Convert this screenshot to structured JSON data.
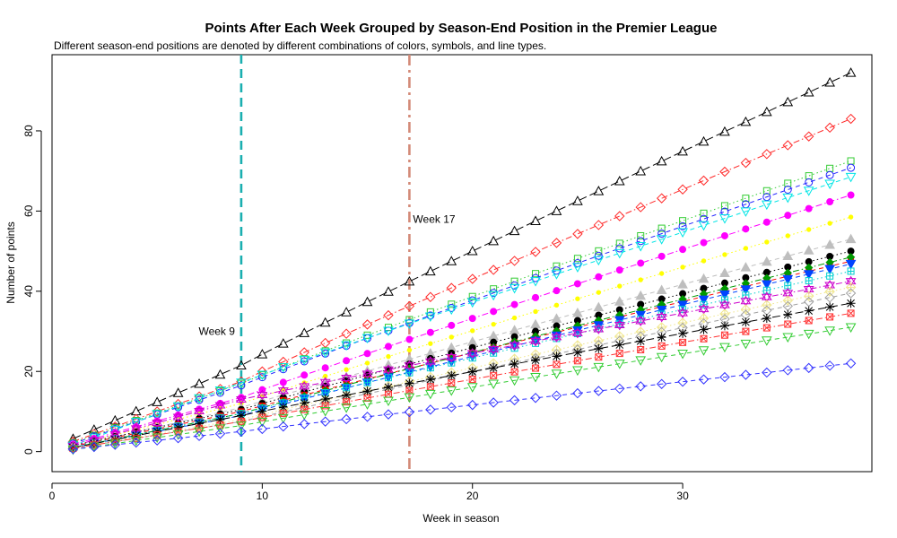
{
  "chart_data": {
    "type": "line",
    "title": "Points After Each Week Grouped by Season-End Position in the Premier League",
    "subtitle": "Different season-end positions are denoted by different combinations of colors, symbols, and line types.",
    "xlabel": "Week in season",
    "ylabel": "Number of points",
    "xlim": [
      0,
      39
    ],
    "ylim": [
      -5,
      99
    ],
    "xticks": [
      0,
      10,
      20,
      30
    ],
    "yticks": [
      0,
      20,
      40,
      60,
      80
    ],
    "grid": false,
    "legend": "none",
    "x": [
      1,
      2,
      3,
      4,
      5,
      6,
      7,
      8,
      9,
      10,
      11,
      12,
      13,
      14,
      15,
      16,
      17,
      18,
      19,
      20,
      21,
      22,
      23,
      24,
      25,
      26,
      27,
      28,
      29,
      30,
      31,
      32,
      33,
      34,
      35,
      36,
      37,
      38
    ],
    "annotations": [
      {
        "label": "Week 9",
        "x": 9,
        "label_y": 30,
        "color": "#1AAFB0",
        "dash": "dashed",
        "label_side": "left"
      },
      {
        "label": "Week 17",
        "x": 17,
        "label_y": 58,
        "color": "#D38A78",
        "dash": "dashdot",
        "label_side": "right"
      }
    ],
    "series": [
      {
        "color": "#000000",
        "marker": "triangle-up",
        "dash": "longdash",
        "start": 3.2,
        "mid": 21.5,
        "end": 94.5
      },
      {
        "color": "#FF2A2A",
        "marker": "diamond",
        "dash": "dashdot",
        "start": 2.5,
        "mid": 17.5,
        "end": 83.0
      },
      {
        "color": "#33CC33",
        "marker": "square",
        "dash": "dotted",
        "start": 2.2,
        "mid": 17.0,
        "end": 72.5
      },
      {
        "color": "#2222FF",
        "marker": "circle",
        "dash": "dashed",
        "start": 2.0,
        "mid": 16.5,
        "end": 70.8
      },
      {
        "color": "#00E5E5",
        "marker": "triangle-down",
        "dash": "dashed",
        "start": 1.5,
        "mid": 17.2,
        "end": 68.5
      },
      {
        "color": "#FF00FF",
        "marker": "filled-circle",
        "dash": "dashdot",
        "start": 1.8,
        "mid": 13.5,
        "end": 64.0
      },
      {
        "color": "#FFFF00",
        "marker": "filled-circle-small",
        "dash": "dotted",
        "start": 1.5,
        "mid": 12.0,
        "end": 58.5
      },
      {
        "color": "#BEBEBE",
        "marker": "filled-triangle",
        "dash": "dashed",
        "start": 1.2,
        "mid": 11.0,
        "end": 53.0
      },
      {
        "color": "#000000",
        "marker": "filled-circle",
        "dash": "dotted",
        "start": 1.5,
        "mid": 10.5,
        "end": 50.0
      },
      {
        "color": "#FF0000",
        "marker": "filled-square",
        "dash": "dashed",
        "start": 1.3,
        "mid": 10.0,
        "end": 47.5
      },
      {
        "color": "#009900",
        "marker": "filled-diamond",
        "dash": "dashdot",
        "start": 1.0,
        "mid": 9.5,
        "end": 48.5
      },
      {
        "color": "#0044FF",
        "marker": "filled-triangle-down",
        "dash": "dashed",
        "start": 1.0,
        "mid": 9.0,
        "end": 46.8
      },
      {
        "color": "#00D0D0",
        "marker": "cross-square",
        "dash": "dotted",
        "start": 1.2,
        "mid": 9.5,
        "end": 45.0
      },
      {
        "color": "#CC00CC",
        "marker": "star",
        "dash": "dashdot",
        "start": 1.4,
        "mid": 13.0,
        "end": 42.5
      },
      {
        "color": "#F0E68C",
        "marker": "diamond-plus",
        "dash": "dotted",
        "start": 1.0,
        "mid": 8.0,
        "end": 41.0
      },
      {
        "color": "#A0A0A0",
        "marker": "diamond",
        "dash": "dashed",
        "start": 0.8,
        "mid": 7.5,
        "end": 39.5
      },
      {
        "color": "#000000",
        "marker": "asterisk",
        "dash": "longdash",
        "start": 1.0,
        "mid": 9.0,
        "end": 37.0
      },
      {
        "color": "#FF3333",
        "marker": "crossed-square",
        "dash": "dashdot",
        "start": 0.8,
        "mid": 7.5,
        "end": 34.5
      },
      {
        "color": "#33CC33",
        "marker": "triangle-down",
        "dash": "dashed",
        "start": 0.5,
        "mid": 6.5,
        "end": 31.0
      },
      {
        "color": "#3333FF",
        "marker": "diamond",
        "dash": "dashed",
        "start": 0.6,
        "mid": 5.0,
        "end": 22.0
      }
    ]
  }
}
